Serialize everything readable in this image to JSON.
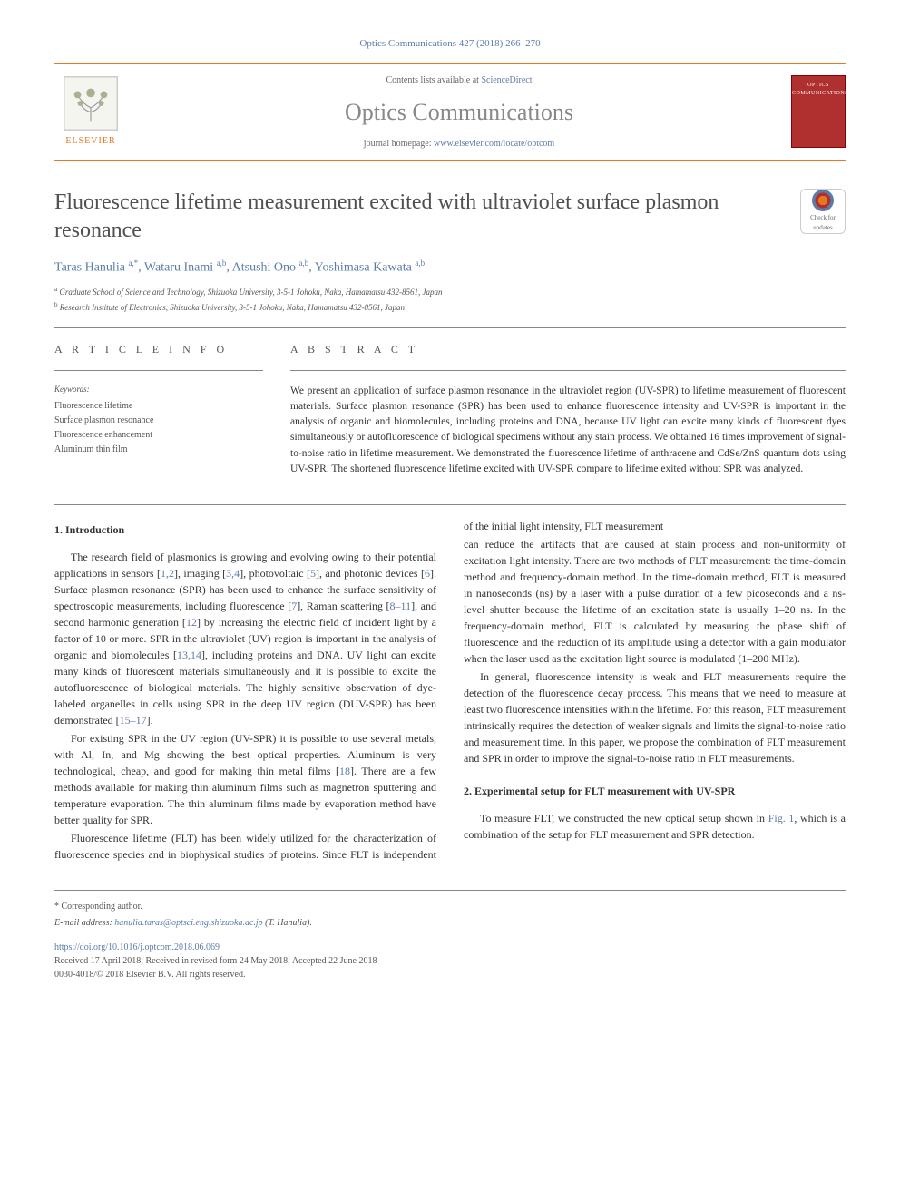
{
  "journal_ref": "Optics Communications 427 (2018) 266–270",
  "header": {
    "publisher": "ELSEVIER",
    "contents_prefix": "Contents lists available at ",
    "contents_link": "ScienceDirect",
    "journal_title": "Optics Communications",
    "homepage_prefix": "journal homepage: ",
    "homepage_link": "www.elsevier.com/locate/optcom",
    "cover_label": "OPTICS COMMUNICATIONS"
  },
  "article": {
    "title": "Fluorescence lifetime measurement excited with ultraviolet surface plasmon resonance",
    "check_updates_label": "Check for updates",
    "authors_html": "Taras Hanulia <sup>a,*</sup>, Wataru Inami <sup>a,b</sup>, Atsushi Ono <sup>a,b</sup>, Yoshimasa Kawata <sup>a,b</sup>",
    "affiliations": [
      {
        "sup": "a",
        "text": "Graduate School of Science and Technology, Shizuoka University, 3-5-1 Johoku, Naka, Hamamatsu 432-8561, Japan"
      },
      {
        "sup": "b",
        "text": "Research Institute of Electronics, Shizuoka University, 3-5-1 Johoku, Naka, Hamamatsu 432-8561, Japan"
      }
    ]
  },
  "info": {
    "heading": "A R T I C L E   I N F O",
    "keywords_label": "Keywords:",
    "keywords": [
      "Fluorescence lifetime",
      "Surface plasmon resonance",
      "Fluorescence enhancement",
      "Aluminum thin film"
    ]
  },
  "abstract": {
    "heading": "A B S T R A C T",
    "text": "We present an application of surface plasmon resonance in the ultraviolet region (UV-SPR) to lifetime measurement of fluorescent materials. Surface plasmon resonance (SPR) has been used to enhance fluorescence intensity and UV-SPR is important in the analysis of organic and biomolecules, including proteins and DNA, because UV light can excite many kinds of fluorescent dyes simultaneously or autofluorescence of biological specimens without any stain process. We obtained 16 times improvement of signal-to-noise ratio in lifetime measurement. We demonstrated the fluorescence lifetime of anthracene and CdSe/ZnS quantum dots using UV-SPR. The shortened fluorescence lifetime excited with UV-SPR compare to lifetime exited without SPR was analyzed."
  },
  "sections": {
    "intro_title": "1. Introduction",
    "intro_p1": "The research field of plasmonics is growing and evolving owing to their potential applications in sensors [1,2], imaging [3,4], photovoltaic [5], and photonic devices [6]. Surface plasmon resonance (SPR) has been used to enhance the surface sensitivity of spectroscopic measurements, including fluorescence [7], Raman scattering [8–11], and second harmonic generation [12] by increasing the electric field of incident light by a factor of 10 or more. SPR in the ultraviolet (UV) region is important in the analysis of organic and biomolecules [13,14], including proteins and DNA. UV light can excite many kinds of fluorescent materials simultaneously and it is possible to excite the autofluorescence of biological materials. The highly sensitive observation of dye-labeled organelles in cells using SPR in the deep UV region (DUV-SPR) has been demonstrated [15–17].",
    "intro_p2": "For existing SPR in the UV region (UV-SPR) it is possible to use several metals, with Al, In, and Mg showing the best optical properties. Aluminum is very technological, cheap, and good for making thin metal films [18]. There are a few methods available for making thin aluminum films such as magnetron sputtering and temperature evaporation. The thin aluminum films made by evaporation method have better quality for SPR.",
    "intro_p3": "Fluorescence lifetime (FLT) has been widely utilized for the characterization of fluorescence species and in biophysical studies of proteins. Since FLT is independent of the initial light intensity, FLT measurement",
    "intro_p4": "can reduce the artifacts that are caused at stain process and non-uniformity of excitation light intensity. There are two methods of FLT measurement: the time-domain method and frequency-domain method. In the time-domain method, FLT is measured in nanoseconds (ns) by a laser with a pulse duration of a few picoseconds and a ns-level shutter because the lifetime of an excitation state is usually 1–20 ns. In the frequency-domain method, FLT is calculated by measuring the phase shift of fluorescence and the reduction of its amplitude using a detector with a gain modulator when the laser used as the excitation light source is modulated (1–200 MHz).",
    "intro_p5": "In general, fluorescence intensity is weak and FLT measurements require the detection of the fluorescence decay process. This means that we need to measure at least two fluorescence intensities within the lifetime. For this reason, FLT measurement intrinsically requires the detection of weaker signals and limits the signal-to-noise ratio and measurement time. In this paper, we propose the combination of FLT measurement and SPR in order to improve the signal-to-noise ratio in FLT measurements.",
    "setup_title": "2. Experimental setup for FLT measurement with UV-SPR",
    "setup_p1": "To measure FLT, we constructed the new optical setup shown in Fig. 1, which is a combination of the setup for FLT measurement and SPR detection."
  },
  "footer": {
    "corresponding": "* Corresponding author.",
    "email_label": "E-mail address: ",
    "email": "hanulia.taras@optsci.eng.shizuoka.ac.jp",
    "email_suffix": " (T. Hanulia).",
    "doi": "https://doi.org/10.1016/j.optcom.2018.06.069",
    "history": "Received 17 April 2018; Received in revised form 24 May 2018; Accepted 22 June 2018",
    "copyright": "0030-4018/© 2018 Elsevier B.V. All rights reserved."
  },
  "colors": {
    "accent_orange": "#e87722",
    "link_blue": "#5b7ca8",
    "cover_red": "#b03030",
    "text_gray": "#555555"
  }
}
